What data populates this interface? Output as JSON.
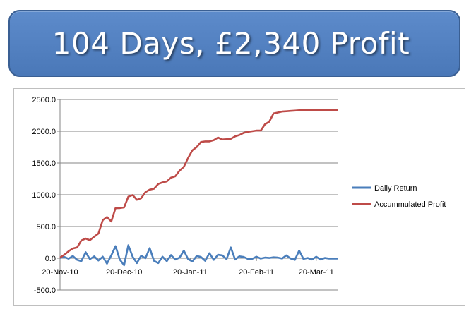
{
  "banner": {
    "title": "104 Days, £2,340 Profit"
  },
  "colors": {
    "banner_fill": "#4f81bd",
    "daily_return": "#4a7ebb",
    "accumulated_profit": "#be4b48",
    "gridline": "#868686"
  },
  "chart_data": {
    "type": "line",
    "title": "",
    "xlabel": "",
    "ylabel": "",
    "ylim": [
      -500,
      2500
    ],
    "y_ticks": [
      2500,
      2000,
      1500,
      1000,
      500,
      0,
      -500
    ],
    "y_tick_labels": [
      "2500.0",
      "2000.0",
      "1500.0",
      "1000.0",
      "500.0",
      "0.0",
      "-500.0"
    ],
    "x_tick_labels": [
      "20-Nov-10",
      "20-Dec-10",
      "20-Jan-11",
      "20-Feb-11",
      "20-Mar-11"
    ],
    "x_tick_positions": [
      0,
      30,
      61,
      92,
      120
    ],
    "x_range": [
      0,
      130
    ],
    "grid": true,
    "legend_position": "right",
    "series": [
      {
        "name": "Daily Return",
        "color": "#4a7ebb",
        "x": [
          0,
          2,
          4,
          6,
          8,
          10,
          12,
          14,
          16,
          18,
          20,
          22,
          24,
          26,
          28,
          30,
          32,
          34,
          36,
          38,
          40,
          42,
          44,
          46,
          48,
          50,
          52,
          54,
          56,
          58,
          60,
          62,
          64,
          66,
          68,
          70,
          72,
          74,
          76,
          78,
          80,
          82,
          84,
          86,
          88,
          90,
          92,
          94,
          96,
          98,
          100,
          102,
          104,
          106,
          108,
          110,
          112,
          114,
          116,
          118,
          120,
          122,
          124,
          126,
          128,
          130
        ],
        "values": [
          5,
          20,
          -8,
          35,
          -25,
          -45,
          95,
          -15,
          30,
          -35,
          25,
          -85,
          45,
          190,
          -20,
          -110,
          205,
          25,
          -75,
          40,
          0,
          160,
          -40,
          -75,
          25,
          -45,
          50,
          -20,
          10,
          120,
          -15,
          -50,
          35,
          20,
          -40,
          80,
          -25,
          55,
          45,
          -15,
          170,
          -20,
          30,
          20,
          -10,
          -10,
          25,
          -5,
          10,
          5,
          15,
          10,
          -5,
          45,
          -5,
          -25,
          120,
          -10,
          5,
          -20,
          25,
          -20,
          5,
          -5,
          -5,
          -5
        ]
      },
      {
        "name": "Accummulated Profit",
        "color": "#be4b48",
        "x": [
          0,
          2,
          4,
          6,
          8,
          10,
          12,
          14,
          16,
          18,
          20,
          22,
          24,
          26,
          28,
          30,
          32,
          34,
          36,
          38,
          40,
          42,
          44,
          46,
          48,
          50,
          52,
          54,
          56,
          58,
          60,
          62,
          64,
          66,
          68,
          70,
          72,
          74,
          76,
          78,
          80,
          82,
          84,
          86,
          88,
          90,
          92,
          94,
          96,
          98,
          100,
          102,
          104,
          106,
          108,
          110,
          112,
          114,
          116,
          118,
          120,
          122,
          124,
          126,
          128,
          130
        ],
        "values": [
          10,
          55,
          110,
          155,
          170,
          280,
          310,
          285,
          340,
          390,
          600,
          650,
          580,
          790,
          790,
          800,
          970,
          995,
          920,
          945,
          1040,
          1080,
          1095,
          1170,
          1195,
          1210,
          1270,
          1290,
          1380,
          1440,
          1580,
          1700,
          1750,
          1830,
          1840,
          1840,
          1860,
          1900,
          1870,
          1875,
          1880,
          1920,
          1940,
          1975,
          1990,
          2000,
          2010,
          2010,
          2110,
          2150,
          2280,
          2295,
          2310,
          2315,
          2320,
          2325,
          2330,
          2330,
          2330,
          2330,
          2330,
          2330,
          2330,
          2330,
          2330,
          2330
        ]
      }
    ]
  }
}
